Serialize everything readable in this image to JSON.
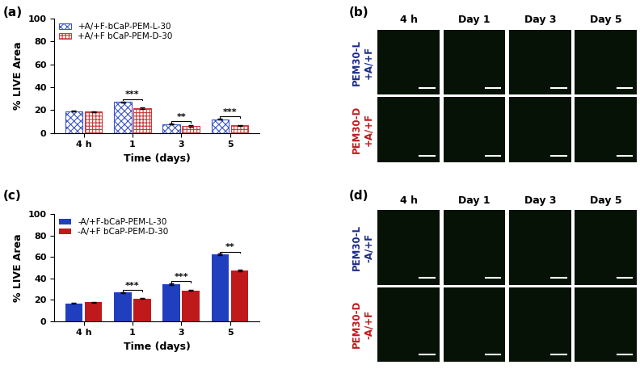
{
  "chart_data": [
    {
      "type": "bar",
      "panel": "(a)",
      "x_label": "Time (days)",
      "y_label": "% LIVE Area",
      "categories": [
        "4 h",
        "1",
        "3",
        "5"
      ],
      "series": [
        {
          "name": "+A/+F-bCaP-PEM-L-30",
          "color": "#3a55c8",
          "values": [
            19,
            27,
            7.5,
            12
          ],
          "errors": [
            0.6,
            0.5,
            0.4,
            0.5
          ]
        },
        {
          "name": "+A/+F bCaP-PEM-D-30",
          "color": "#c83a3a",
          "values": [
            18.5,
            21.5,
            6,
            6.5
          ],
          "errors": [
            0.5,
            0.5,
            0.4,
            0.4
          ]
        }
      ],
      "annotations": [
        {
          "category": "1",
          "text": "***"
        },
        {
          "category": "3",
          "text": "**"
        },
        {
          "category": "5",
          "text": "***"
        }
      ],
      "ylim": [
        0,
        100
      ],
      "yticks": [
        0,
        20,
        40,
        60,
        80,
        100
      ],
      "legend": "upper left"
    },
    {
      "type": "bar",
      "panel": "(c)",
      "x_label": "Time (days)",
      "y_label": "% LIVE Area",
      "categories": [
        "4 h",
        "1",
        "3",
        "5"
      ],
      "series": [
        {
          "name": "-A/+F-bCaP-PEM-L-30",
          "color": "#1f3fbf",
          "values": [
            16.5,
            26.5,
            34.5,
            62
          ],
          "errors": [
            0.5,
            0.5,
            0.6,
            0.8
          ]
        },
        {
          "name": "-A/+F bCaP-PEM-D-30",
          "color": "#c0191b",
          "values": [
            17.5,
            21,
            28.5,
            47
          ],
          "errors": [
            0.5,
            0.5,
            0.5,
            0.7
          ]
        }
      ],
      "annotations": [
        {
          "category": "1",
          "text": "***"
        },
        {
          "category": "3",
          "text": "***"
        },
        {
          "category": "5",
          "text": "**"
        }
      ],
      "ylim": [
        0,
        100
      ],
      "yticks": [
        0,
        20,
        40,
        60,
        80,
        100
      ],
      "legend": "upper left"
    }
  ],
  "image_panels": [
    {
      "panel": "(b)",
      "columns": [
        "4 h",
        "Day 1",
        "Day 3",
        "Day 5"
      ],
      "rows": [
        {
          "label": "PEM30-L\n+A/+F",
          "color": "#1a2a8a"
        },
        {
          "label": "PEM30-D\n+A/+F",
          "color": "#c0191b"
        }
      ]
    },
    {
      "panel": "(d)",
      "columns": [
        "4 h",
        "Day 1",
        "Day 3",
        "Day 5"
      ],
      "rows": [
        {
          "label": "PEM30-L\n-A/+F",
          "color": "#1a2a8a"
        },
        {
          "label": "PEM30-D\n-A/+F",
          "color": "#c0191b"
        }
      ]
    }
  ]
}
